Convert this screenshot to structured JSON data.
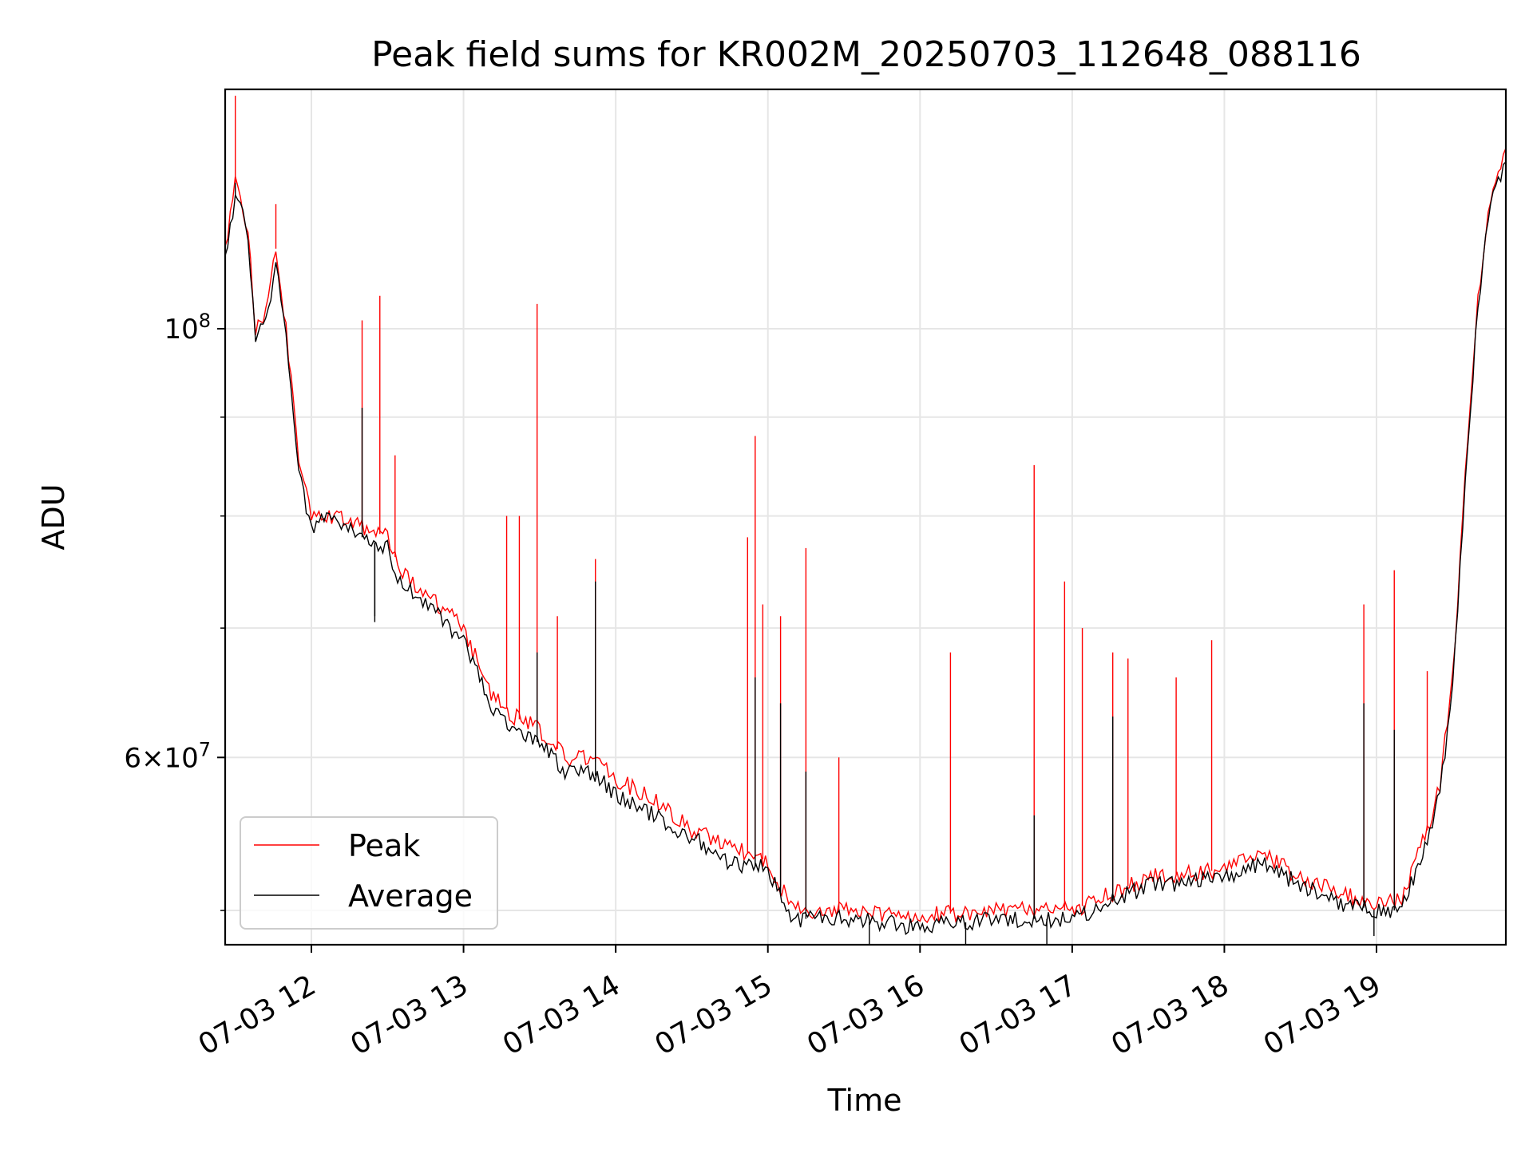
{
  "chart_data": {
    "type": "line",
    "title": "Peak field sums for KR002M_20250703_112648_088116",
    "xlabel": "Time",
    "ylabel": "ADU",
    "y_scale": "log",
    "ylim": [
      48000000,
      133000000
    ],
    "xlim": [
      "2025-07-03 11:26",
      "2025-07-03 19:51"
    ],
    "grid": true,
    "legend_position": "lower left",
    "x_ticks": [
      {
        "label": "07-03 12",
        "value": "2025-07-03 12:00"
      },
      {
        "label": "07-03 13",
        "value": "2025-07-03 13:00"
      },
      {
        "label": "07-03 14",
        "value": "2025-07-03 14:00"
      },
      {
        "label": "07-03 15",
        "value": "2025-07-03 15:00"
      },
      {
        "label": "07-03 16",
        "value": "2025-07-03 16:00"
      },
      {
        "label": "07-03 17",
        "value": "2025-07-03 17:00"
      },
      {
        "label": "07-03 18",
        "value": "2025-07-03 18:00"
      },
      {
        "label": "07-03 19",
        "value": "2025-07-03 19:00"
      }
    ],
    "y_ticks_major": [
      {
        "mantissa": "",
        "exponent": "8",
        "value": 100000000
      },
      {
        "mantissa": "6",
        "exponent": "7",
        "value": 60000000
      }
    ],
    "y_ticks_minor": [
      50000000,
      70000000,
      80000000,
      90000000
    ],
    "series": [
      {
        "name": "Peak",
        "color": "#ff0000",
        "x": [
          "2025-07-03 11:26",
          "2025-07-03 11:30",
          "2025-07-03 11:32",
          "2025-07-03 11:35",
          "2025-07-03 11:38",
          "2025-07-03 11:42",
          "2025-07-03 11:46",
          "2025-07-03 11:50",
          "2025-07-03 11:53",
          "2025-07-03 11:55",
          "2025-07-03 11:57",
          "2025-07-03 12:00",
          "2025-07-03 12:05",
          "2025-07-03 12:10",
          "2025-07-03 12:20",
          "2025-07-03 12:30",
          "2025-07-03 12:35",
          "2025-07-03 12:40",
          "2025-07-03 12:45",
          "2025-07-03 12:50",
          "2025-07-03 13:00",
          "2025-07-03 13:10",
          "2025-07-03 13:20",
          "2025-07-03 13:30",
          "2025-07-03 13:40",
          "2025-07-03 13:50",
          "2025-07-03 14:00",
          "2025-07-03 14:15",
          "2025-07-03 14:30",
          "2025-07-03 14:45",
          "2025-07-03 15:00",
          "2025-07-03 15:10",
          "2025-07-03 15:30",
          "2025-07-03 16:00",
          "2025-07-03 16:30",
          "2025-07-03 17:00",
          "2025-07-03 17:30",
          "2025-07-03 18:00",
          "2025-07-03 18:15",
          "2025-07-03 18:30",
          "2025-07-03 18:45",
          "2025-07-03 19:00",
          "2025-07-03 19:10",
          "2025-07-03 19:20",
          "2025-07-03 19:25",
          "2025-07-03 19:30",
          "2025-07-03 19:33",
          "2025-07-03 19:36",
          "2025-07-03 19:40",
          "2025-07-03 19:45",
          "2025-07-03 19:51"
        ],
        "y": [
          110000000,
          119000000,
          118000000,
          112000000,
          100000000,
          102000000,
          110000000,
          100000000,
          91000000,
          85000000,
          83000000,
          80000000,
          80000000,
          80000000,
          79000000,
          78000000,
          75000000,
          74000000,
          73000000,
          72000000,
          70000000,
          65000000,
          63000000,
          62000000,
          60000000,
          60000000,
          58500000,
          57000000,
          55000000,
          54000000,
          53000000,
          50000000,
          50000000,
          49700000,
          50000000,
          50000000,
          52000000,
          52500000,
          53500000,
          52000000,
          51000000,
          50500000,
          50500000,
          55000000,
          58000000,
          66000000,
          76000000,
          88000000,
          104000000,
          117000000,
          124000000
        ]
      },
      {
        "name": "Average",
        "color": "#000000",
        "x": [
          "2025-07-03 11:26",
          "2025-07-03 11:30",
          "2025-07-03 11:32",
          "2025-07-03 11:35",
          "2025-07-03 11:38",
          "2025-07-03 11:42",
          "2025-07-03 11:46",
          "2025-07-03 11:50",
          "2025-07-03 11:53",
          "2025-07-03 11:55",
          "2025-07-03 11:57",
          "2025-07-03 12:00",
          "2025-07-03 12:05",
          "2025-07-03 12:10",
          "2025-07-03 12:20",
          "2025-07-03 12:30",
          "2025-07-03 12:35",
          "2025-07-03 12:40",
          "2025-07-03 12:45",
          "2025-07-03 12:50",
          "2025-07-03 13:00",
          "2025-07-03 13:10",
          "2025-07-03 13:20",
          "2025-07-03 13:30",
          "2025-07-03 13:40",
          "2025-07-03 13:50",
          "2025-07-03 14:00",
          "2025-07-03 14:15",
          "2025-07-03 14:30",
          "2025-07-03 14:45",
          "2025-07-03 15:00",
          "2025-07-03 15:10",
          "2025-07-03 15:30",
          "2025-07-03 16:00",
          "2025-07-03 16:30",
          "2025-07-03 17:00",
          "2025-07-03 17:30",
          "2025-07-03 18:00",
          "2025-07-03 18:15",
          "2025-07-03 18:30",
          "2025-07-03 18:45",
          "2025-07-03 19:00",
          "2025-07-03 19:10",
          "2025-07-03 19:20",
          "2025-07-03 19:25",
          "2025-07-03 19:30",
          "2025-07-03 19:33",
          "2025-07-03 19:36",
          "2025-07-03 19:40",
          "2025-07-03 19:45",
          "2025-07-03 19:51"
        ],
        "y": [
          109000000,
          117000000,
          116000000,
          111000000,
          99000000,
          101000000,
          108000000,
          99000000,
          90000000,
          84000000,
          82000000,
          79000000,
          79500000,
          79500000,
          78000000,
          77000000,
          74000000,
          73000000,
          72000000,
          71000000,
          69000000,
          64000000,
          62000000,
          61000000,
          59000000,
          59000000,
          57500000,
          56000000,
          54500000,
          53000000,
          52500000,
          49500000,
          49500000,
          49000000,
          49500000,
          49500000,
          51500000,
          52000000,
          53000000,
          51500000,
          50500000,
          50000000,
          50000000,
          54500000,
          57500000,
          65000000,
          75000000,
          87000000,
          103000000,
          116000000,
          122000000
        ]
      }
    ],
    "spikes": {
      "Peak": [
        {
          "x": "2025-07-03 11:30",
          "y": 132000000
        },
        {
          "x": "2025-07-03 11:46",
          "y": 116000000
        },
        {
          "x": "2025-07-03 12:20",
          "y": 101000000
        },
        {
          "x": "2025-07-03 12:27",
          "y": 104000000
        },
        {
          "x": "2025-07-03 12:33",
          "y": 86000000
        },
        {
          "x": "2025-07-03 13:17",
          "y": 80000000
        },
        {
          "x": "2025-07-03 13:22",
          "y": 80000000
        },
        {
          "x": "2025-07-03 13:29",
          "y": 103000000
        },
        {
          "x": "2025-07-03 13:37",
          "y": 71000000
        },
        {
          "x": "2025-07-03 13:52",
          "y": 76000000
        },
        {
          "x": "2025-07-03 14:52",
          "y": 78000000
        },
        {
          "x": "2025-07-03 14:55",
          "y": 88000000
        },
        {
          "x": "2025-07-03 14:58",
          "y": 72000000
        },
        {
          "x": "2025-07-03 15:05",
          "y": 71000000
        },
        {
          "x": "2025-07-03 15:15",
          "y": 77000000
        },
        {
          "x": "2025-07-03 15:28",
          "y": 60000000
        },
        {
          "x": "2025-07-03 16:12",
          "y": 68000000
        },
        {
          "x": "2025-07-03 16:45",
          "y": 85000000
        },
        {
          "x": "2025-07-03 16:57",
          "y": 74000000
        },
        {
          "x": "2025-07-03 17:04",
          "y": 70000000
        },
        {
          "x": "2025-07-03 17:16",
          "y": 68000000
        },
        {
          "x": "2025-07-03 17:22",
          "y": 67500000
        },
        {
          "x": "2025-07-03 17:41",
          "y": 66000000
        },
        {
          "x": "2025-07-03 17:55",
          "y": 69000000
        },
        {
          "x": "2025-07-03 18:55",
          "y": 72000000
        },
        {
          "x": "2025-07-03 19:07",
          "y": 75000000
        },
        {
          "x": "2025-07-03 19:20",
          "y": 66500000
        }
      ],
      "Average": [
        {
          "x": "2025-07-03 11:30",
          "y": 119000000
        },
        {
          "x": "2025-07-03 12:20",
          "y": 91000000
        },
        {
          "x": "2025-07-03 12:25",
          "y": 71000000
        },
        {
          "x": "2025-07-03 13:29",
          "y": 68000000
        },
        {
          "x": "2025-07-03 13:52",
          "y": 74000000
        },
        {
          "x": "2025-07-03 14:55",
          "y": 66000000
        },
        {
          "x": "2025-07-03 15:05",
          "y": 64000000
        },
        {
          "x": "2025-07-03 15:15",
          "y": 59000000
        },
        {
          "x": "2025-07-03 16:45",
          "y": 56000000
        },
        {
          "x": "2025-07-03 17:16",
          "y": 63000000
        },
        {
          "x": "2025-07-03 18:55",
          "y": 64000000
        },
        {
          "x": "2025-07-03 19:07",
          "y": 62000000
        },
        {
          "x": "2025-07-03 15:40",
          "y": 48000000
        },
        {
          "x": "2025-07-03 16:18",
          "y": 48000000
        },
        {
          "x": "2025-07-03 16:50",
          "y": 48000000
        },
        {
          "x": "2025-07-03 18:59",
          "y": 48500000
        },
        {
          "x": "2025-07-03 12:25",
          "y": 70500000
        }
      ]
    }
  }
}
